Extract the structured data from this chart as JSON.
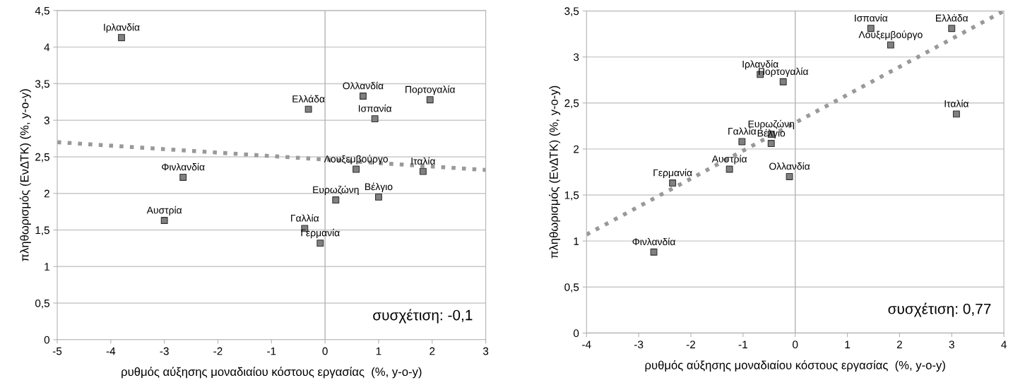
{
  "chart_data": [
    {
      "type": "scatter",
      "xlabel": "ρυθμός αύξησης μοναδιαίου κόστους εργασίας  (%, y-o-y)",
      "ylabel": "πληθωρισμός (ΕνΔΤΚ) (%, y-o-y)",
      "xlim": [
        -5,
        3
      ],
      "xticks": [
        -5,
        -4,
        -3,
        -2,
        -1,
        0,
        1,
        2,
        3
      ],
      "ylim": [
        0,
        4.5
      ],
      "yticks": [
        0,
        {
          "value": 0.5,
          "label": "0,5"
        },
        1,
        {
          "value": 1.5,
          "label": "1,5"
        },
        2,
        {
          "value": 2.5,
          "label": "2,5"
        },
        3,
        {
          "value": 3.5,
          "label": "3,5"
        },
        4,
        {
          "value": 4.5,
          "label": "4,5"
        }
      ],
      "grid": "y",
      "marker": "square",
      "ref_lines": [
        {
          "axis": "x",
          "value": 0,
          "color": "#b3b3b3"
        }
      ],
      "series": [
        {
          "type": "line",
          "color": "#999999",
          "line_style": "dotted",
          "marker": "none",
          "x": [
            -5,
            3
          ],
          "values": [
            2.7,
            2.32
          ]
        },
        {
          "color": "#808080",
          "x": [
            -3.8,
            -0.31,
            -2.65,
            0.71,
            1.96,
            0.93,
            0.58,
            1.83,
            0.2,
            1.0,
            -0.38,
            -0.09,
            -3.0
          ],
          "values": [
            4.13,
            3.15,
            2.22,
            3.33,
            3.28,
            3.02,
            2.33,
            2.3,
            1.91,
            1.95,
            1.52,
            1.32,
            1.63
          ]
        }
      ],
      "annotations": [
        {
          "text": "Ιρλανδία",
          "x": -3.8,
          "y": 4.13
        },
        {
          "text": "Ελλάδα",
          "x": -0.31,
          "y": 3.15
        },
        {
          "text": "Φινλανδία",
          "x": -2.65,
          "y": 2.22
        },
        {
          "text": "Ολλανδία",
          "x": 0.71,
          "y": 3.33
        },
        {
          "text": "Πορτογαλία",
          "x": 1.96,
          "y": 3.28
        },
        {
          "text": "Ισπανία",
          "x": 0.93,
          "y": 3.02
        },
        {
          "text": "Λουξεμβούργο",
          "x": 0.58,
          "y": 2.33
        },
        {
          "text": "Ιταλία",
          "x": 1.83,
          "y": 2.3
        },
        {
          "text": "Ευρωζώνη",
          "x": 0.2,
          "y": 1.91
        },
        {
          "text": "Βέλγιο",
          "x": 1.0,
          "y": 1.95
        },
        {
          "text": "Γαλλία",
          "x": -0.38,
          "y": 1.52
        },
        {
          "text": "Γερμανία",
          "x": -0.09,
          "y": 1.32
        },
        {
          "text": "Αυστρία",
          "x": -3.0,
          "y": 1.63
        },
        "συσχέτιση: -0,1"
      ]
    },
    {
      "type": "scatter",
      "xlabel": "ρυθμός αύξησης μοναδιαίου κόστους εργασίας  (%, y-o-y)",
      "ylabel": "πληθωρισμός (ΕνΔΤΚ) (%, y-o-y)",
      "xlim": [
        -4,
        4
      ],
      "xticks": [
        -4,
        -3,
        -2,
        -1,
        0,
        1,
        2,
        3,
        4
      ],
      "ylim": [
        0,
        3.5
      ],
      "yticks": [
        0,
        {
          "value": 0.5,
          "label": "0,5"
        },
        1,
        {
          "value": 1.5,
          "label": "1,5"
        },
        2,
        {
          "value": 2.5,
          "label": "2,5"
        },
        3,
        {
          "value": 3.5,
          "label": "3,5"
        }
      ],
      "grid": "y",
      "marker": "square",
      "ref_lines": [
        {
          "axis": "x",
          "value": 0,
          "color": "#b3b3b3"
        }
      ],
      "series": [
        {
          "type": "line",
          "color": "#999999",
          "line_style": "dotted",
          "marker": "none",
          "x": [
            -4,
            4
          ],
          "values": [
            1.07,
            3.5
          ]
        },
        {
          "color": "#808080",
          "x": [
            1.45,
            3.0,
            1.83,
            -0.67,
            -0.23,
            3.09,
            -0.46,
            -0.46,
            -0.11,
            -1.02,
            -1.26,
            -2.35,
            -2.71
          ],
          "values": [
            3.31,
            3.31,
            3.13,
            2.81,
            2.73,
            2.38,
            2.16,
            2.06,
            1.7,
            2.08,
            1.78,
            1.63,
            0.88
          ]
        }
      ],
      "annotations": [
        {
          "text": "Ισπανία",
          "x": 1.45,
          "y": 3.31
        },
        {
          "text": "Ελλάδα",
          "x": 3.0,
          "y": 3.31
        },
        {
          "text": "Λουξεμβούργο",
          "x": 1.83,
          "y": 3.13
        },
        {
          "text": "Ιρλανδία",
          "x": -0.67,
          "y": 2.81
        },
        {
          "text": "Πορτογαλία",
          "x": -0.23,
          "y": 2.73
        },
        {
          "text": "Ιταλία",
          "x": 3.09,
          "y": 2.38
        },
        {
          "text": "Ευρωζώνη",
          "x": -0.46,
          "y": 2.16
        },
        {
          "text": "Βέλγιο",
          "x": -0.46,
          "y": 2.06
        },
        {
          "text": "Ολλανδία",
          "x": -0.11,
          "y": 1.7
        },
        {
          "text": "Γαλλία",
          "x": -1.02,
          "y": 2.08
        },
        {
          "text": "Αυστρία",
          "x": -1.26,
          "y": 1.78
        },
        {
          "text": "Γερμανία",
          "x": -2.35,
          "y": 1.63
        },
        {
          "text": "Φινλανδία",
          "x": -2.71,
          "y": 0.88
        },
        "συσχέτιση: 0,77"
      ]
    }
  ]
}
